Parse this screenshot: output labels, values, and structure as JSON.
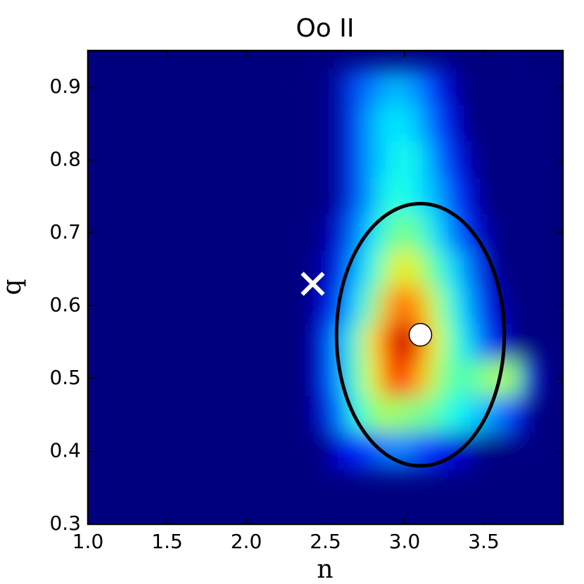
{
  "chart_data": {
    "type": "heatmap",
    "title": "Oo II",
    "x_label": "n",
    "y_label": "q",
    "xlim": [
      1.0,
      4.0
    ],
    "ylim": [
      0.3,
      0.95
    ],
    "xticks": [
      {
        "value": 1,
        "label": "1.0"
      },
      1.5,
      {
        "value": 2,
        "label": "2.0"
      },
      2.5,
      {
        "value": 3,
        "label": "3.0"
      },
      3.5
    ],
    "yticks": [
      0.3,
      0.4,
      0.5,
      0.6,
      0.7,
      0.8,
      0.9
    ],
    "colormap": "jet",
    "n_centers": [
      2.4,
      2.5,
      2.6,
      2.7,
      2.8,
      2.9,
      3.0,
      3.1,
      3.2,
      3.3,
      3.4,
      3.5,
      3.6,
      3.7,
      3.8
    ],
    "q_centers": [
      0.9,
      0.85,
      0.8,
      0.75,
      0.7,
      0.65,
      0.6,
      0.55,
      0.5,
      0.45,
      0.4
    ],
    "z": [
      [
        0,
        0,
        0.05,
        0.2,
        0.25,
        0.3,
        0.3,
        0.25,
        0.15,
        0.05,
        0,
        0,
        0,
        0,
        0
      ],
      [
        0,
        0,
        0.05,
        0.2,
        0.3,
        0.35,
        0.35,
        0.3,
        0.2,
        0.1,
        0,
        0,
        0,
        0,
        0
      ],
      [
        0,
        0,
        0.05,
        0.2,
        0.3,
        0.35,
        0.4,
        0.35,
        0.25,
        0.15,
        0.05,
        0,
        0,
        0,
        0
      ],
      [
        0,
        0,
        0.05,
        0.2,
        0.3,
        0.4,
        0.4,
        0.35,
        0.3,
        0.2,
        0.1,
        0,
        0,
        0,
        0
      ],
      [
        0,
        0.02,
        0.1,
        0.25,
        0.35,
        0.45,
        0.5,
        0.45,
        0.35,
        0.25,
        0.15,
        0.05,
        0,
        0,
        0
      ],
      [
        0,
        0.05,
        0.15,
        0.3,
        0.4,
        0.55,
        0.65,
        0.55,
        0.45,
        0.35,
        0.25,
        0.1,
        0,
        0,
        0
      ],
      [
        0,
        0.1,
        0.2,
        0.35,
        0.5,
        0.7,
        0.8,
        0.7,
        0.55,
        0.4,
        0.3,
        0.15,
        0.05,
        0,
        0
      ],
      [
        0,
        0.15,
        0.3,
        0.45,
        0.65,
        0.85,
        0.95,
        0.8,
        0.6,
        0.45,
        0.35,
        0.2,
        0.1,
        0,
        0
      ],
      [
        0,
        0.15,
        0.3,
        0.45,
        0.6,
        0.8,
        0.85,
        0.7,
        0.55,
        0.45,
        0.45,
        0.5,
        0.55,
        0.5,
        0.1
      ],
      [
        0,
        0.1,
        0.25,
        0.4,
        0.5,
        0.55,
        0.5,
        0.5,
        0.45,
        0.4,
        0.35,
        0.3,
        0.25,
        0.15,
        0
      ],
      [
        0,
        0,
        0.1,
        0.15,
        0.2,
        0.25,
        0.25,
        0.2,
        0.15,
        0.1,
        0.05,
        0,
        0,
        0,
        0
      ]
    ],
    "ellipse": {
      "center": [
        3.1,
        0.56
      ],
      "width": 1.06,
      "height": 0.36,
      "color": "#000000"
    },
    "best_fit": {
      "x": 3.1,
      "y": 0.56,
      "color": "#ffffff"
    },
    "cross": {
      "x": 2.42,
      "y": 0.63,
      "color": "#ffffff"
    }
  }
}
